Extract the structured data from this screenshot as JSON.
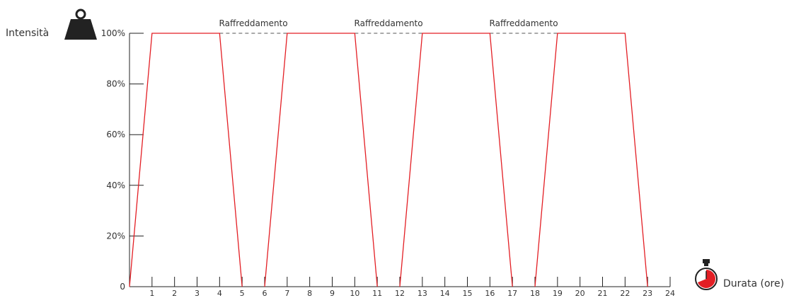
{
  "chart_data": {
    "type": "line",
    "ylabel": "Intensità",
    "xlabel": "Durata (ore)",
    "y_tick_labels": [
      "0",
      "20%",
      "40%",
      "60%",
      "80%",
      "100%"
    ],
    "y_tick_values": [
      0,
      20,
      40,
      60,
      80,
      100
    ],
    "x_ticks": [
      1,
      2,
      3,
      4,
      5,
      6,
      7,
      8,
      9,
      10,
      11,
      12,
      13,
      14,
      15,
      16,
      17,
      18,
      19,
      20,
      21,
      22,
      23,
      24
    ],
    "xlim": [
      0,
      24
    ],
    "ylim": [
      0,
      100
    ],
    "grid": false,
    "series": [
      {
        "color": "#e31e24",
        "segments": [
          {
            "x": [
              0,
              1,
              4,
              5
            ],
            "y": [
              0,
              100,
              100,
              0
            ]
          },
          {
            "x": [
              6,
              7,
              10,
              11
            ],
            "y": [
              0,
              100,
              100,
              0
            ]
          },
          {
            "x": [
              12,
              13,
              16,
              17
            ],
            "y": [
              0,
              100,
              100,
              0
            ]
          },
          {
            "x": [
              18,
              19,
              22,
              23
            ],
            "y": [
              0,
              100,
              100,
              0
            ]
          }
        ]
      }
    ],
    "cooling": {
      "label": "Raffreddamento",
      "y": 100,
      "intervals": [
        [
          4,
          7
        ],
        [
          10,
          13
        ],
        [
          16,
          19
        ]
      ]
    },
    "icons": {
      "y_axis": "weight-icon",
      "x_axis": "stopwatch-icon"
    }
  }
}
